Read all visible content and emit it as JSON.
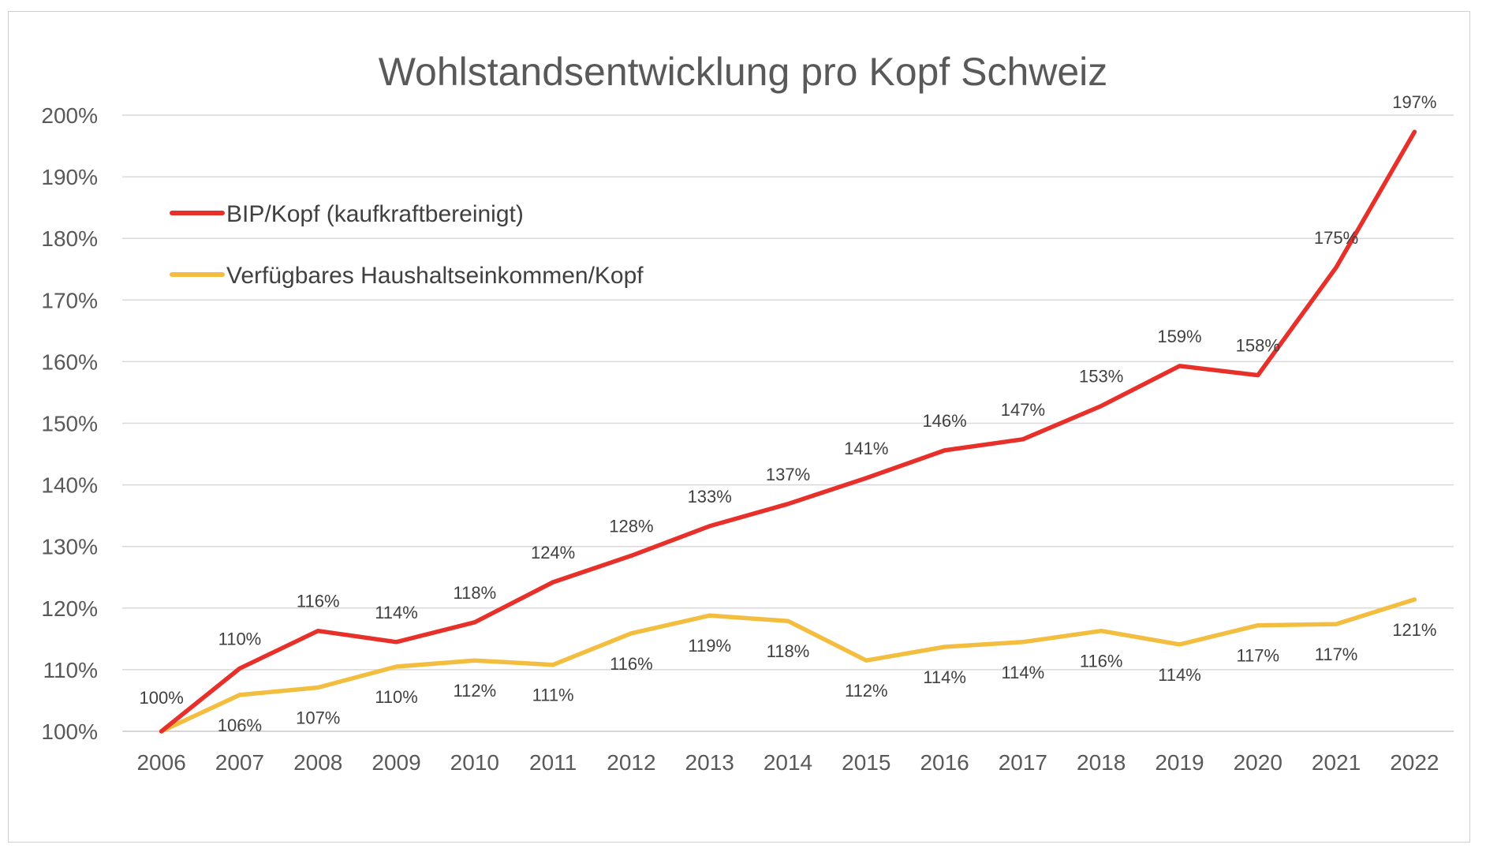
{
  "chart_data": {
    "type": "line",
    "title": "Wohlstandsentwicklung pro Kopf Schweiz",
    "xlabel": "",
    "ylabel": "",
    "x": [
      "2006",
      "2007",
      "2008",
      "2009",
      "2010",
      "2011",
      "2012",
      "2013",
      "2014",
      "2015",
      "2016",
      "2017",
      "2018",
      "2019",
      "2020",
      "2021",
      "2022"
    ],
    "ylim": [
      100,
      200
    ],
    "yticks": [
      "100%",
      "110%",
      "120%",
      "130%",
      "140%",
      "150%",
      "160%",
      "170%",
      "180%",
      "190%",
      "200%"
    ],
    "grid": true,
    "legend_position": "top-left",
    "series": [
      {
        "name": "BIP/Kopf (kaufkraftbereinigt)",
        "color": "#E8302A",
        "values": [
          100,
          110.2,
          116.3,
          114.5,
          117.7,
          124.2,
          128.5,
          133.3,
          136.9,
          141.1,
          145.6,
          147.4,
          152.8,
          159.3,
          157.8,
          175.3,
          197.3
        ],
        "labels": [
          "100%",
          "110%",
          "116%",
          "114%",
          "118%",
          "124%",
          "128%",
          "133%",
          "137%",
          "141%",
          "146%",
          "147%",
          "153%",
          "159%",
          "158%",
          "175%",
          "197%"
        ]
      },
      {
        "name": "Verfügbares Haushaltseinkommen/Kopf",
        "color": "#F3BE3F",
        "values": [
          100,
          105.9,
          107.1,
          110.5,
          111.5,
          110.8,
          115.9,
          118.8,
          117.9,
          111.5,
          113.7,
          114.5,
          116.3,
          114.1,
          117.2,
          117.4,
          121.4
        ],
        "labels": [
          "100%",
          "106%",
          "107%",
          "110%",
          "112%",
          "111%",
          "116%",
          "119%",
          "118%",
          "112%",
          "114%",
          "114%",
          "116%",
          "114%",
          "117%",
          "117%",
          "121%"
        ]
      }
    ]
  }
}
